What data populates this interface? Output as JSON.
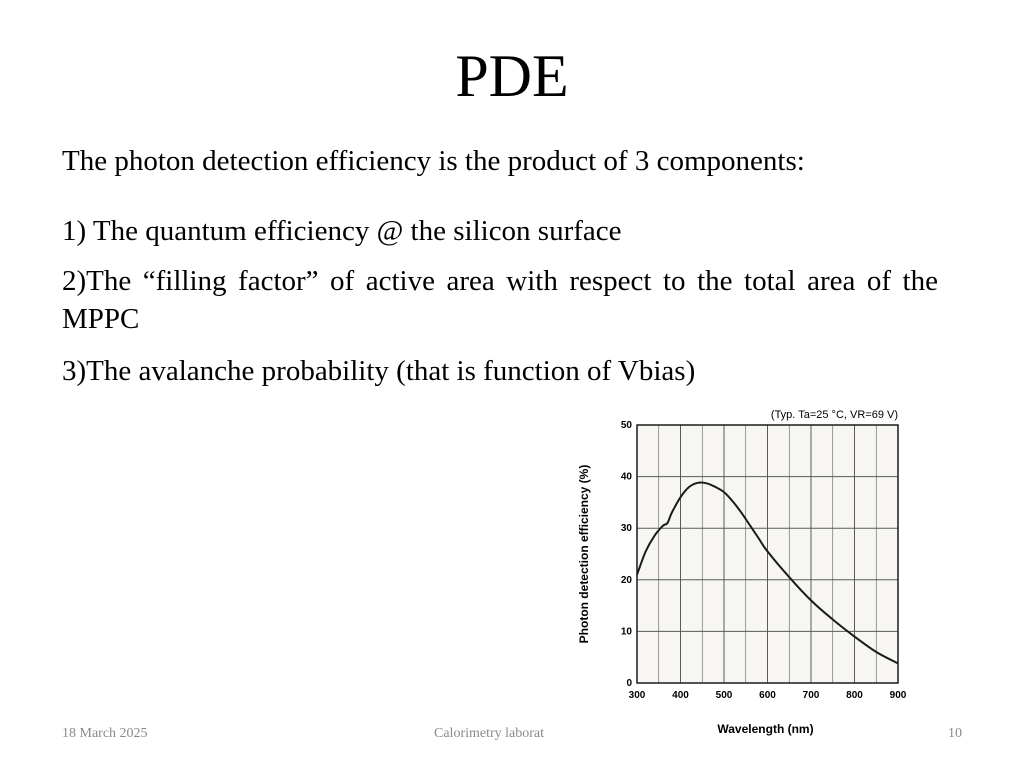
{
  "slide": {
    "title": "PDE",
    "intro": "The photon detection efficiency is the product of 3 components:",
    "items": [
      "1) The quantum efficiency @ the silicon surface",
      "2)The “filling factor” of active area with respect to the total area of the MPPC",
      "3)The avalanche probability (that is function of Vbias)"
    ]
  },
  "footer": {
    "date": "18 March 2025",
    "center": "Calorimetry laborat",
    "page": "10"
  },
  "chart_data": {
    "type": "line",
    "title": "",
    "annotation": "(Typ. Ta=25 °C, VR=69 V)",
    "xlabel": "Wavelength (nm)",
    "ylabel": "Photon detection efficiency (%)",
    "xlim": [
      300,
      900
    ],
    "ylim": [
      0,
      50
    ],
    "xticks": [
      300,
      400,
      500,
      600,
      700,
      800,
      900
    ],
    "yticks": [
      0,
      10,
      20,
      30,
      40,
      50
    ],
    "grid": true,
    "series": [
      {
        "x": [
          300,
          320,
          340,
          360,
          370,
          380,
          400,
          420,
          440,
          460,
          480,
          500,
          520,
          540,
          560,
          580,
          600,
          650,
          700,
          750,
          800,
          850,
          900
        ],
        "y": [
          21,
          25.5,
          28.5,
          30.5,
          31,
          33,
          36,
          38,
          38.8,
          38.7,
          38,
          37,
          35.2,
          33,
          30.5,
          28,
          25.5,
          20.5,
          16,
          12.3,
          9,
          6,
          3.8
        ]
      }
    ],
    "colors": {
      "line": "#1a1a1a",
      "grid": "#5a5a5a",
      "plot_bg": "#f7f6f2"
    }
  }
}
